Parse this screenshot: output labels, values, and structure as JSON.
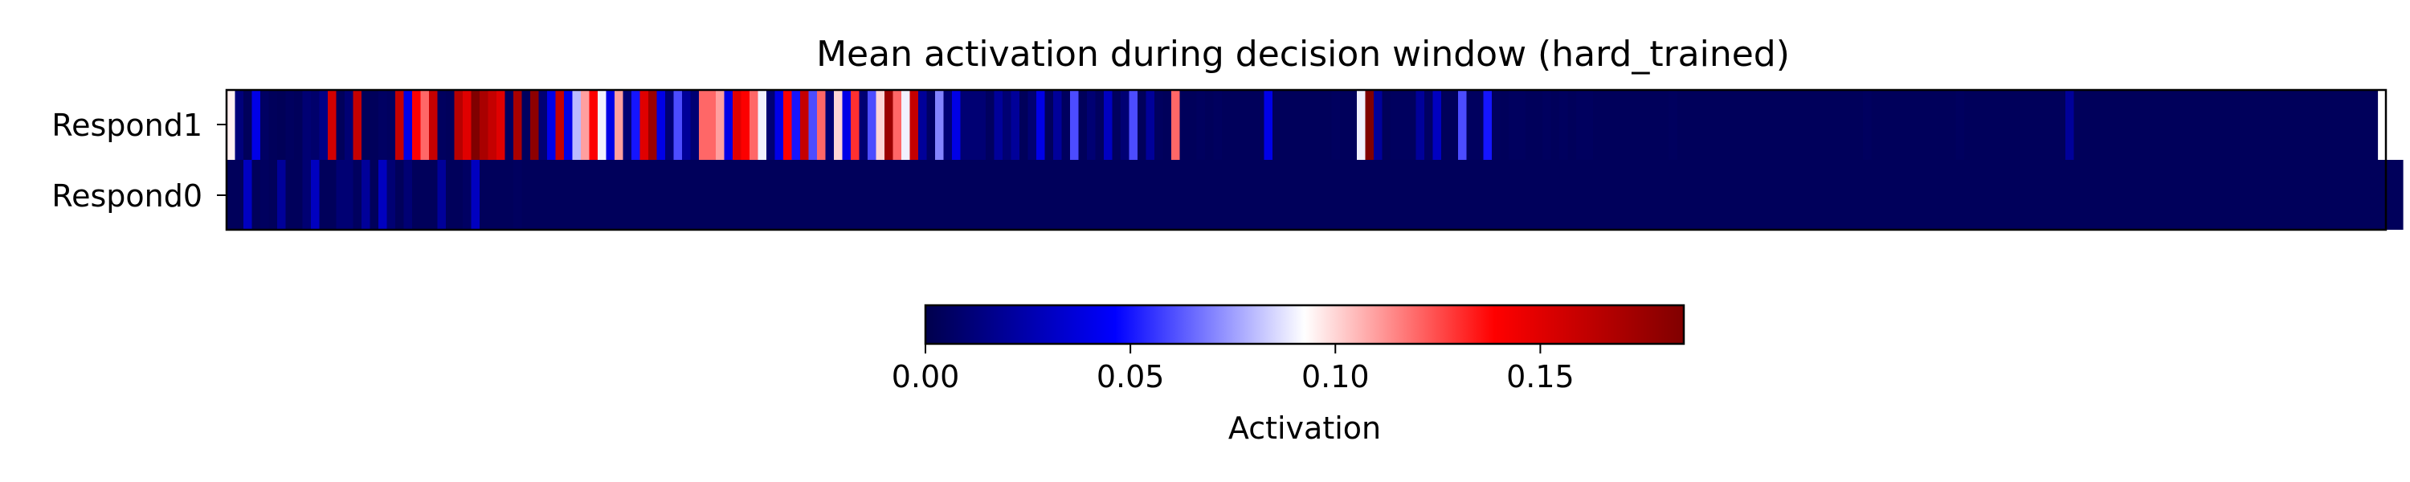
{
  "chart_data": {
    "type": "heatmap",
    "title": "Mean activation during decision window (hard_trained)",
    "rows": [
      "Respond1",
      "Respond0"
    ],
    "columns_count": 256,
    "vmin": 0.0,
    "vmax": 0.185,
    "colormap": "seismic",
    "colorbar": {
      "label": "Activation",
      "ticks": [
        0.0,
        0.05,
        0.1,
        0.15
      ],
      "tick_labels": [
        "0.00",
        "0.05",
        "0.10",
        "0.15"
      ],
      "placement": "bottom"
    },
    "values": [
      [
        0.095,
        0.012,
        0.004,
        0.04,
        0.006,
        0.004,
        0.003,
        0.005,
        0.004,
        0.01,
        0.008,
        0.015,
        0.155,
        0.004,
        0.01,
        0.16,
        0.004,
        0.004,
        0.006,
        0.005,
        0.16,
        0.04,
        0.14,
        0.12,
        0.16,
        0.005,
        0.004,
        0.165,
        0.15,
        0.185,
        0.17,
        0.16,
        0.15,
        0.005,
        0.17,
        0.005,
        0.18,
        0.01,
        0.04,
        0.16,
        0.04,
        0.08,
        0.11,
        0.14,
        0.09,
        0.04,
        0.11,
        0.01,
        0.05,
        0.15,
        0.175,
        0.04,
        0.01,
        0.06,
        0.02,
        0.01,
        0.12,
        0.12,
        0.11,
        0.04,
        0.15,
        0.14,
        0.12,
        0.09,
        0.01,
        0.04,
        0.14,
        0.05,
        0.16,
        0.06,
        0.12,
        0.01,
        0.1,
        0.04,
        0.13,
        0.01,
        0.06,
        0.1,
        0.175,
        0.12,
        0.09,
        0.16,
        0.02,
        0.006,
        0.07,
        0.01,
        0.04,
        0.01,
        0.01,
        0.01,
        0.005,
        0.02,
        0.01,
        0.02,
        0.004,
        0.01,
        0.04,
        0.004,
        0.02,
        0.005,
        0.06,
        0.004,
        0.01,
        0.005,
        0.03,
        0.005,
        0.01,
        0.06,
        0.004,
        0.02,
        0.005,
        0.004,
        0.12,
        0.004,
        0.004,
        0.005,
        0.004,
        0.005,
        0.004,
        0.004,
        0.004,
        0.004,
        0.004,
        0.04,
        0.004,
        0.004,
        0.004,
        0.004,
        0.004,
        0.004,
        0.004,
        0.005,
        0.004,
        0.004,
        0.09,
        0.185,
        0.02,
        0.004,
        0.005,
        0.005,
        0.005,
        0.02,
        0.006,
        0.03,
        0.004,
        0.004,
        0.06,
        0.005,
        0.005,
        0.05,
        0.005,
        0.004,
        0.005,
        0.005,
        0.004,
        0.004,
        0.005,
        0.004,
        0.005,
        0.004,
        0.005,
        0.005,
        0.004,
        0.004,
        0.004,
        0.004,
        0.004,
        0.004,
        0.004,
        0.004,
        0.004,
        0.005,
        0.004,
        0.004,
        0.004,
        0.004,
        0.004,
        0.004,
        0.004,
        0.004,
        0.004,
        0.004,
        0.004,
        0.004,
        0.004,
        0.004,
        0.004,
        0.004,
        0.004,
        0.004,
        0.004,
        0.004,
        0.004,
        0.004,
        0.005,
        0.004,
        0.004,
        0.004,
        0.004,
        0.004,
        0.004,
        0.004,
        0.004,
        0.004,
        0.004,
        0.005,
        0.004,
        0.004,
        0.004,
        0.004,
        0.004,
        0.004,
        0.004,
        0.004,
        0.004,
        0.004,
        0.004,
        0.004,
        0.02,
        0.004,
        0.004,
        0.004,
        0.004,
        0.004,
        0.004,
        0.004,
        0.004,
        0.004,
        0.004,
        0.004,
        0.004,
        0.004,
        0.004,
        0.004,
        0.004,
        0.004,
        0.004,
        0.004,
        0.004,
        0.004,
        0.004,
        0.004,
        0.004,
        0.004,
        0.004,
        0.004,
        0.004,
        0.004,
        0.004,
        0.004,
        0.004,
        0.004,
        0.004,
        0.004,
        0.004
      ],
      [
        0.004,
        0.004,
        0.03,
        0.004,
        0.005,
        0.004,
        0.02,
        0.004,
        0.004,
        0.01,
        0.03,
        0.004,
        0.004,
        0.01,
        0.01,
        0.005,
        0.02,
        0.004,
        0.03,
        0.01,
        0.004,
        0.01,
        0.004,
        0.004,
        0.004,
        0.02,
        0.004,
        0.004,
        0.006,
        0.03,
        0.004,
        0.004,
        0.004,
        0.004,
        0.005,
        0.004,
        0.004,
        0.004,
        0.004,
        0.004,
        0.004,
        0.004,
        0.004,
        0.004,
        0.004,
        0.004,
        0.004,
        0.004,
        0.004,
        0.004,
        0.004,
        0.004,
        0.004,
        0.004,
        0.004,
        0.004,
        0.004,
        0.004,
        0.004,
        0.004,
        0.004,
        0.004,
        0.004,
        0.004,
        0.004,
        0.004,
        0.004,
        0.004,
        0.004,
        0.004,
        0.004,
        0.004,
        0.004,
        0.004,
        0.004,
        0.004,
        0.004,
        0.004,
        0.004,
        0.004,
        0.004,
        0.004,
        0.004,
        0.004,
        0.004,
        0.004,
        0.004,
        0.004,
        0.004,
        0.004,
        0.004,
        0.004,
        0.004,
        0.004,
        0.004,
        0.004,
        0.004,
        0.004,
        0.004,
        0.004,
        0.004,
        0.004,
        0.004,
        0.004,
        0.004,
        0.004,
        0.004,
        0.004,
        0.004,
        0.004,
        0.004,
        0.004,
        0.004,
        0.004,
        0.004,
        0.004,
        0.004,
        0.004,
        0.004,
        0.004,
        0.004,
        0.004,
        0.004,
        0.004,
        0.004,
        0.004,
        0.004,
        0.004,
        0.004,
        0.004,
        0.004,
        0.004,
        0.004,
        0.004,
        0.004,
        0.004,
        0.004,
        0.004,
        0.004,
        0.004,
        0.004,
        0.004,
        0.004,
        0.004,
        0.004,
        0.004,
        0.004,
        0.004,
        0.004,
        0.004,
        0.004,
        0.004,
        0.004,
        0.004,
        0.004,
        0.004,
        0.004,
        0.004,
        0.004,
        0.004,
        0.004,
        0.004,
        0.004,
        0.004,
        0.004,
        0.004,
        0.004,
        0.004,
        0.004,
        0.004,
        0.004,
        0.004,
        0.004,
        0.004,
        0.004,
        0.004,
        0.004,
        0.004,
        0.004,
        0.004,
        0.004,
        0.004,
        0.004,
        0.004,
        0.004,
        0.004,
        0.004,
        0.004,
        0.004,
        0.004,
        0.004,
        0.004,
        0.004,
        0.004,
        0.004,
        0.004,
        0.004,
        0.004,
        0.004,
        0.004,
        0.004,
        0.004,
        0.004,
        0.004,
        0.004,
        0.004,
        0.004,
        0.004,
        0.004,
        0.004,
        0.004,
        0.004,
        0.004,
        0.004,
        0.004,
        0.004,
        0.004,
        0.004,
        0.004,
        0.004,
        0.004,
        0.004,
        0.004,
        0.004,
        0.004,
        0.004,
        0.004,
        0.004,
        0.004,
        0.004,
        0.004,
        0.004,
        0.004,
        0.004,
        0.004,
        0.004,
        0.004,
        0.004,
        0.004,
        0.004,
        0.004,
        0.004,
        0.004,
        0.004,
        0.004,
        0.004,
        0.004,
        0.004,
        0.004,
        0.004,
        0.004,
        0.004,
        0.004,
        0.004,
        0.004,
        0.004,
        0.004,
        0.004
      ]
    ]
  }
}
